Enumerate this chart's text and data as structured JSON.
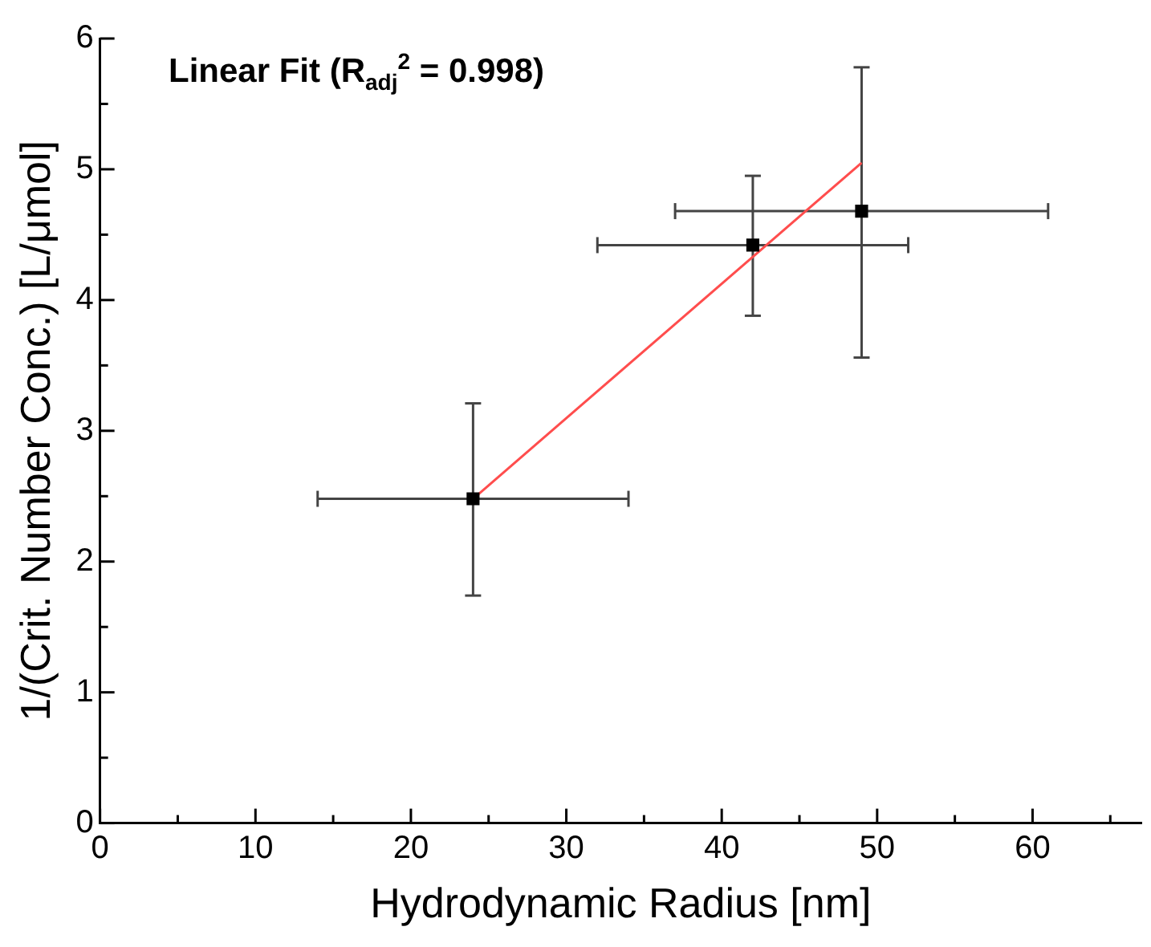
{
  "chart_data": {
    "type": "scatter",
    "xlabel": "Hydrodynamic Radius [nm]",
    "ylabel": "1/(Crit. Number Conc.) [L/μmol]",
    "annotations": [
      "Linear Fit (R$_{adj}$$^{2}$ = 0.998)"
    ],
    "xlim": [
      0,
      67
    ],
    "ylim": [
      0,
      6
    ],
    "xticks": [
      0,
      {
        "value": 5,
        "label": null
      },
      10,
      {
        "value": 15,
        "label": null
      },
      20,
      {
        "value": 25,
        "label": null
      },
      30,
      {
        "value": 35,
        "label": null
      },
      40,
      {
        "value": 45,
        "label": null
      },
      50,
      {
        "value": 55,
        "label": null
      },
      60,
      {
        "value": 65,
        "label": null
      }
    ],
    "yticks": [
      0,
      {
        "value": 0.5,
        "label": null
      },
      1,
      {
        "value": 1.5,
        "label": null
      },
      2,
      {
        "value": 2.5,
        "label": null
      },
      3,
      {
        "value": 3.5,
        "label": null
      },
      4,
      {
        "value": 4.5,
        "label": null
      },
      5,
      {
        "value": 5.5,
        "label": null
      },
      6
    ],
    "grid": false,
    "legend": false,
    "marker": "square",
    "series": [
      {
        "color": "#000000",
        "x": [
          24,
          42,
          49
        ],
        "values": [
          2.48,
          4.42,
          4.68
        ],
        "xerrors": [
          10,
          10,
          12
        ],
        "errors": [
          [
            1.74,
            3.21
          ],
          [
            3.88,
            4.95
          ],
          [
            3.56,
            5.78
          ]
        ]
      },
      {
        "type": "line",
        "color": "#ff4d4d",
        "x": [
          24,
          49
        ],
        "values": [
          2.48,
          5.05
        ],
        "marker": "none",
        "line_style": "solid"
      }
    ]
  }
}
